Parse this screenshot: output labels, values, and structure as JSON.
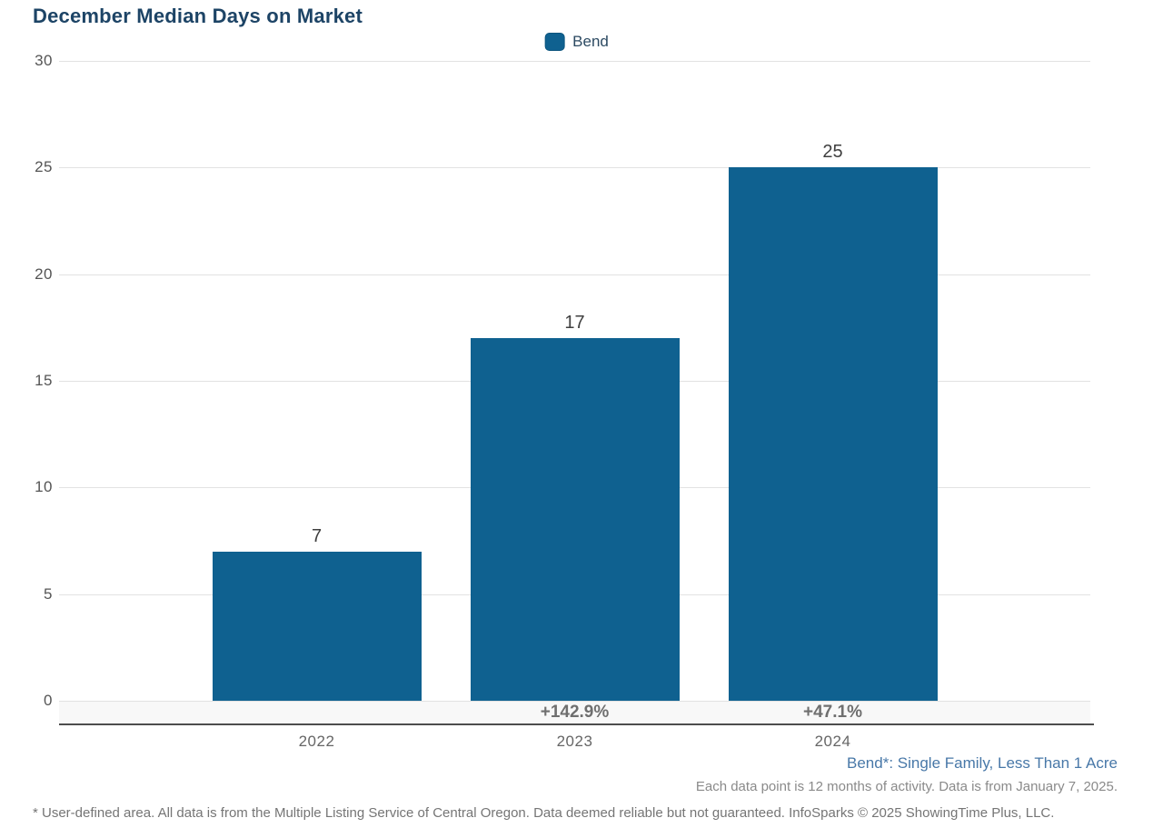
{
  "title": "December Median Days on Market",
  "colors": {
    "bar": "#0F6190",
    "title_text": "#1D4466",
    "legend_text": "#2C4A62",
    "ytick": "#555555",
    "value_label": "#3F3F3F",
    "pct_label": "#6F6F6F",
    "year_label": "#666666",
    "gridline": "#E2E2E2",
    "axis_line": "#4D4D4D",
    "band": "#F8F8F8",
    "footnote_blue": "#4878A8",
    "footnote_gray": "#8A8A8A",
    "disclaimer": "#757575"
  },
  "legend": {
    "label": "Bend"
  },
  "chart_data": {
    "type": "bar",
    "categories": [
      "2022",
      "2023",
      "2024"
    ],
    "series": [
      {
        "name": "Bend",
        "values": [
          7,
          17,
          25
        ],
        "color": "#0F6190"
      }
    ],
    "value_labels": [
      "7",
      "17",
      "25"
    ],
    "pct_change_labels": [
      "",
      "+142.9%",
      "+47.1%"
    ],
    "title": "December Median Days on Market",
    "xlabel": "",
    "ylabel": "",
    "ylim": [
      0,
      30
    ],
    "yticks": [
      0,
      5,
      10,
      15,
      20,
      25,
      30
    ],
    "grid": true,
    "legend_position": "top-center"
  },
  "footnotes": {
    "series_definition": "Bend*: Single Family, Less Than 1 Acre",
    "data_note": "Each data point is 12 months of activity. Data is from January 7, 2025.",
    "disclaimer": "* User-defined area. All data is from the Multiple Listing Service of Central Oregon. Data deemed reliable but not guaranteed. InfoSparks © 2025 ShowingTime Plus, LLC."
  }
}
